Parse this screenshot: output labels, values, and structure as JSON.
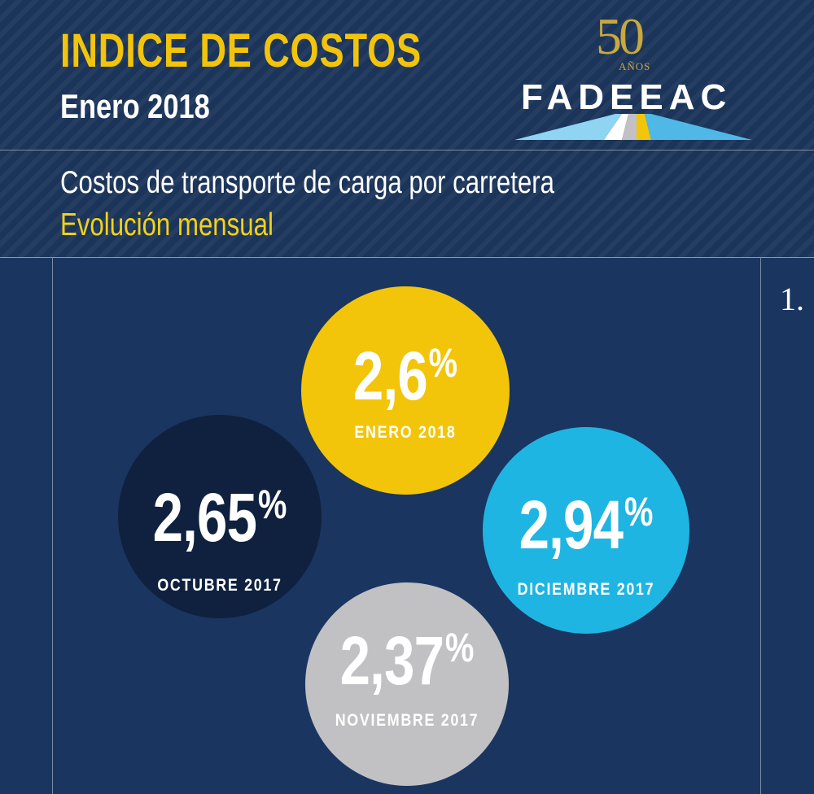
{
  "header": {
    "title": "INDICE DE COSTOS",
    "date": "Enero 2018",
    "description": "Costos de transporte de carga por carretera",
    "subdescription": "Evolución mensual"
  },
  "logo": {
    "number": "50",
    "anos": "AÑOS",
    "name": "FADEEAC",
    "colors": {
      "gold": "#c7a93f",
      "sky": "#4fb8e6",
      "yellow": "#f2c50a",
      "gray": "#c1c1c3"
    }
  },
  "page_number": "1.",
  "bubbles": [
    {
      "id": "enero",
      "value": "2,6",
      "unit": "%",
      "label": "ENERO 2018",
      "color": "#f2c50a"
    },
    {
      "id": "octubre",
      "value": "2,65",
      "unit": "%",
      "label": "OCTUBRE 2017",
      "color": "#0f213e"
    },
    {
      "id": "diciembre",
      "value": "2,94",
      "unit": "%",
      "label": "DICIEMBRE 2017",
      "color": "#1fb5e2"
    },
    {
      "id": "noviembre",
      "value": "2,37",
      "unit": "%",
      "label": "NOVIEMBRE 2017",
      "color": "#c1c1c3"
    }
  ],
  "colors": {
    "background": "#1a3560",
    "accent_yellow": "#f2c40c",
    "header_bg": "#1b3459"
  }
}
